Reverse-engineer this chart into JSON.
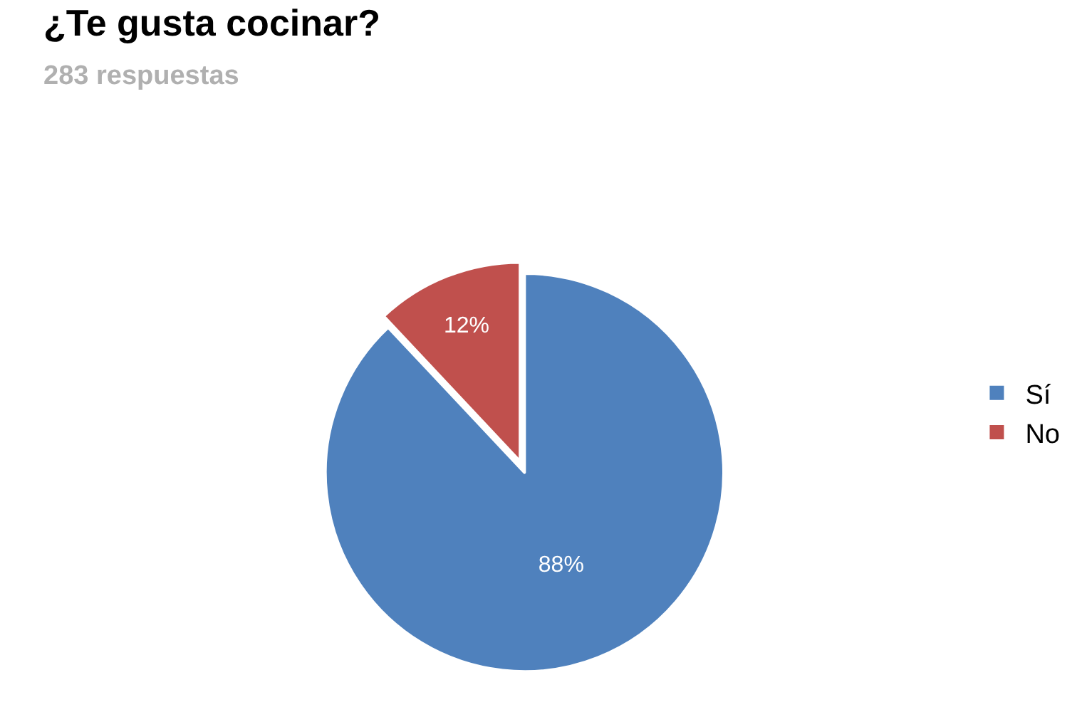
{
  "chart_data": {
    "type": "pie",
    "title": "¿Te gusta cocinar?",
    "subtitle": "283 respuestas",
    "categories": [
      "Sí",
      "No"
    ],
    "values": [
      88,
      12
    ],
    "value_labels": [
      "88%",
      "12%"
    ],
    "colors": [
      "#4f81bd",
      "#c0504d"
    ],
    "legend": "right"
  }
}
